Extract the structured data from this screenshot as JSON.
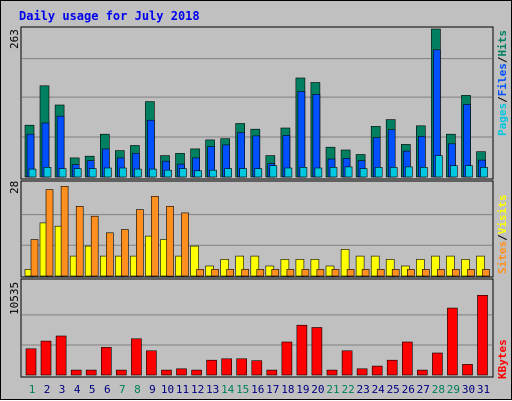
{
  "title": "Daily usage for July 2018",
  "colors": {
    "title": "#0000ee",
    "pages": "#00c8e0",
    "files": "#0050ff",
    "hits": "#008060",
    "sites": "#ff9020",
    "visits": "#ffff00",
    "kbytes": "#ff0000",
    "weekend_day": "#00805c",
    "weekday": "#000080",
    "panel_bg": "#c0c0c0",
    "grid": "#808080"
  },
  "chart_data": [
    {
      "type": "bar",
      "name": "hits-files-pages",
      "ymax_label": "263",
      "legend": [
        "Pages",
        "/",
        "Files",
        "/",
        "Hits"
      ],
      "ylim": [
        0,
        263
      ],
      "categories": [
        "1",
        "2",
        "3",
        "4",
        "5",
        "6",
        "7",
        "8",
        "9",
        "10",
        "11",
        "12",
        "13",
        "14",
        "15",
        "16",
        "17",
        "18",
        "19",
        "20",
        "21",
        "22",
        "23",
        "24",
        "25",
        "26",
        "27",
        "28",
        "29",
        "30",
        "31"
      ],
      "series": [
        {
          "name": "Hits",
          "values": [
            92,
            162,
            128,
            34,
            37,
            76,
            47,
            56,
            134,
            38,
            42,
            50,
            66,
            68,
            95,
            85,
            38,
            87,
            176,
            168,
            53,
            48,
            40,
            90,
            102,
            58,
            91,
            263,
            76,
            145,
            45
          ]
        },
        {
          "name": "Files",
          "values": [
            76,
            96,
            108,
            22,
            29,
            50,
            34,
            42,
            101,
            28,
            23,
            34,
            54,
            57,
            79,
            73,
            24,
            74,
            152,
            147,
            32,
            33,
            29,
            70,
            84,
            46,
            72,
            226,
            59,
            129,
            30
          ]
        },
        {
          "name": "Pages",
          "values": [
            14,
            17,
            15,
            15,
            15,
            16,
            16,
            14,
            14,
            12,
            15,
            11,
            12,
            15,
            15,
            15,
            20,
            16,
            17,
            16,
            17,
            18,
            15,
            17,
            17,
            18,
            17,
            38,
            20,
            20,
            17
          ]
        }
      ]
    },
    {
      "type": "bar",
      "name": "visits-sites",
      "ymax_label": "28",
      "legend": [
        "Sites",
        "/",
        "Visits"
      ],
      "ylim": [
        0,
        28
      ],
      "categories": [
        "1",
        "2",
        "3",
        "4",
        "5",
        "6",
        "7",
        "8",
        "9",
        "10",
        "11",
        "12",
        "13",
        "14",
        "15",
        "16",
        "17",
        "18",
        "19",
        "20",
        "21",
        "22",
        "23",
        "24",
        "25",
        "26",
        "27",
        "28",
        "29",
        "30",
        "31"
      ],
      "series": [
        {
          "name": "Visits",
          "values": [
            2,
            16,
            15,
            6,
            9,
            6,
            6,
            6,
            12,
            11,
            6,
            9,
            3,
            5,
            6,
            6,
            3,
            5,
            5,
            5,
            3,
            8,
            6,
            6,
            5,
            3,
            5,
            6,
            6,
            5,
            6
          ]
        },
        {
          "name": "Sites",
          "values": [
            11,
            26,
            27,
            21,
            18,
            13,
            14,
            20,
            24,
            21,
            19,
            2,
            2,
            2,
            2,
            2,
            2,
            2,
            2,
            2,
            2,
            2,
            2,
            2,
            2,
            2,
            2,
            2,
            2,
            2,
            2
          ]
        }
      ]
    },
    {
      "type": "bar",
      "name": "kbytes",
      "ymax_label": "10535",
      "legend": [
        "KBytes"
      ],
      "ylim": [
        0,
        10535
      ],
      "categories": [
        "1",
        "2",
        "3",
        "4",
        "5",
        "6",
        "7",
        "8",
        "9",
        "10",
        "11",
        "12",
        "13",
        "14",
        "15",
        "16",
        "17",
        "18",
        "19",
        "20",
        "21",
        "22",
        "23",
        "24",
        "25",
        "26",
        "27",
        "28",
        "29",
        "30",
        "31"
      ],
      "series": [
        {
          "name": "KBytes",
          "values": [
            3032,
            3930,
            4519,
            569,
            569,
            3201,
            569,
            4193,
            2800,
            569,
            723,
            569,
            1712,
            1881,
            1878,
            1658,
            569,
            3818,
            5763,
            5503,
            569,
            2800,
            723,
            1034,
            1710,
            3818,
            569,
            2547,
            7750,
            1224,
            9230
          ]
        }
      ]
    }
  ],
  "x_axis": {
    "days": [
      "1",
      "2",
      "3",
      "4",
      "5",
      "6",
      "7",
      "8",
      "9",
      "10",
      "11",
      "12",
      "13",
      "14",
      "15",
      "16",
      "17",
      "18",
      "19",
      "20",
      "21",
      "22",
      "23",
      "24",
      "25",
      "26",
      "27",
      "28",
      "29",
      "30",
      "31"
    ],
    "weekend": [
      1,
      7,
      8,
      14,
      15,
      21,
      22,
      28,
      29
    ]
  }
}
